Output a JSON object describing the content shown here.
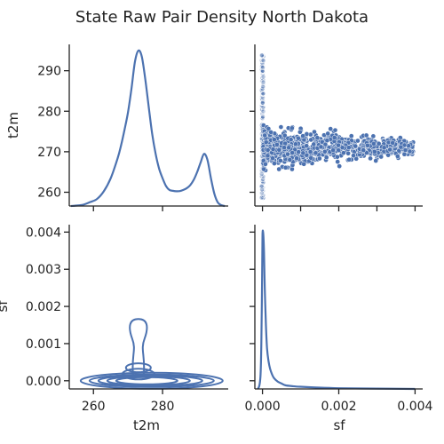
{
  "chart_data": {
    "type": "pairplot",
    "title": "State Raw Pair Density North Dakota",
    "variables": [
      "t2m",
      "sf"
    ],
    "color": "#4c72b0",
    "t2m": {
      "label": "t2m",
      "xlim": [
        253,
        299
      ],
      "ylim": [
        256.6,
        296.5
      ],
      "ticks": [
        260,
        270,
        280,
        290
      ],
      "ticks_bottom": [
        260,
        280
      ],
      "kde": {
        "x": [
          253.5,
          255,
          257,
          259,
          261,
          263,
          265,
          267,
          268,
          269,
          270,
          271,
          272,
          273,
          274,
          275,
          276,
          277,
          278,
          279,
          280,
          281,
          282,
          283,
          284,
          285,
          286,
          287,
          288,
          289,
          290,
          291,
          292,
          293,
          294,
          295,
          296,
          297,
          298
        ],
        "density": [
          0.0,
          0.05,
          0.15,
          0.45,
          0.8,
          1.7,
          3.2,
          5.5,
          7.0,
          8.8,
          10.8,
          13.5,
          16.6,
          17.9,
          17.2,
          14.6,
          11.4,
          8.3,
          6.0,
          4.3,
          3.2,
          2.3,
          1.85,
          1.75,
          1.7,
          1.72,
          1.85,
          2.05,
          2.4,
          3.0,
          3.9,
          5.0,
          6.0,
          5.3,
          3.2,
          1.4,
          0.4,
          0.1,
          0.0
        ]
      }
    },
    "sf": {
      "label": "sf",
      "xlim": [
        -0.0002,
        0.0042
      ],
      "ylim": [
        -0.00022,
        0.0042
      ],
      "ticks": [
        0.0,
        0.001,
        0.002,
        0.003,
        0.004
      ],
      "ticks_bottom": [
        0.0,
        0.002,
        0.004
      ],
      "tick_labels": [
        "0.000",
        "0.001",
        "0.002",
        "0.003",
        "0.004"
      ],
      "tick_labels_bottom": [
        "0.000",
        "0.002",
        "0.004"
      ],
      "kde": {
        "x": [
          -0.00012,
          -8e-05,
          -5e-05,
          -3e-05,
          -1e-05,
          0.0,
          2e-05,
          4e-05,
          6e-05,
          9e-05,
          0.00012,
          0.00016,
          0.0002,
          0.00025,
          0.0003,
          0.0004,
          0.0005,
          0.0006,
          0.0008,
          0.001,
          0.0014,
          0.002,
          0.003,
          0.004
        ],
        "density": [
          0.0,
          0.02,
          0.08,
          0.25,
          0.6,
          0.84,
          0.85,
          0.75,
          0.55,
          0.35,
          0.22,
          0.15,
          0.11,
          0.08,
          0.06,
          0.04,
          0.03,
          0.02,
          0.015,
          0.012,
          0.008,
          0.004,
          0.002,
          0.0
        ]
      }
    },
    "scatter": {
      "x_variable": "sf",
      "y_variable": "t2m",
      "description": "Dense vertical cluster at sf = 0 spanning t2m 258–294; for sf > 0, t2m is concentrated between about 263 and 277, thinning out toward sf = 0.004."
    },
    "kde2d": {
      "x_variable": "t2m",
      "y_variable": "sf",
      "contour_levels": 8,
      "peak": [
        273,
        0.0
      ]
    }
  }
}
